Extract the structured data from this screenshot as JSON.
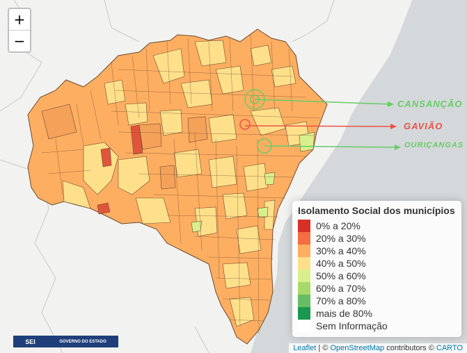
{
  "zoom": {
    "in_label": "+",
    "out_label": "−"
  },
  "legend": {
    "title": "Isolamento Social dos municípios",
    "items": [
      {
        "label": "0% a 20%",
        "color": "#d73027"
      },
      {
        "label": "20% a 30%",
        "color": "#f46d43"
      },
      {
        "label": "30% a 40%",
        "color": "#fdae61"
      },
      {
        "label": "40% a 50%",
        "color": "#fee08b"
      },
      {
        "label": "50% a 60%",
        "color": "#d9ef8b"
      },
      {
        "label": "60% a 70%",
        "color": "#a6d96a"
      },
      {
        "label": "70% a 80%",
        "color": "#66bd63"
      },
      {
        "label": "mais de 80%",
        "color": "#1a9850"
      },
      {
        "label": "Sem Informação",
        "color": "#ffffff"
      }
    ]
  },
  "labels": {
    "cansancao": {
      "text": "CANSANÇÃO",
      "color": "#66cc66"
    },
    "gaviao": {
      "text": "GAVIÃO",
      "color": "#e8534a"
    },
    "ouricangas": {
      "text": "OURIÇANGAS",
      "color": "#66cc66"
    }
  },
  "attribution": {
    "leaflet": "Leaflet",
    "sep": " | © ",
    "osm": "OpenStreetMap",
    "contrib": " contributors © ",
    "carto": "CARTO"
  },
  "logos": {
    "sei": "SEI",
    "gov": "GOVERNO DO ESTADO"
  },
  "colors": {
    "sea": "#d4d8da",
    "land": "#f2f2f0",
    "border": "#555555"
  }
}
